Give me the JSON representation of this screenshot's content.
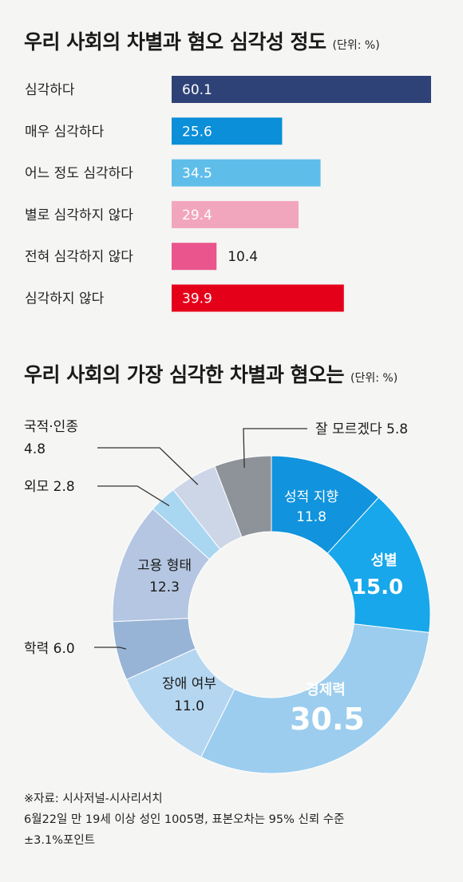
{
  "chart_data": [
    {
      "type": "bar",
      "title": "우리 사회의 차별과 혐오 심각성 정도",
      "unit": "(단위: %)",
      "categories": [
        "심각하다",
        "매우 심각하다",
        "어느 정도 심각하다",
        "별로 심각하지 않다",
        "전혀 심각하지 않다",
        "심각하지 않다"
      ],
      "values": [
        60.1,
        25.6,
        34.5,
        29.4,
        10.4,
        39.9
      ],
      "value_labels": [
        "60.1",
        "25.6",
        "34.5",
        "29.4",
        "10.4",
        "39.9"
      ],
      "colors": [
        "#2f4277",
        "#0b8fd8",
        "#5fbdea",
        "#f2a6bd",
        "#e9558c",
        "#e50019"
      ],
      "xlim": [
        0,
        60.1
      ]
    },
    {
      "type": "pie",
      "title": "우리 사회의 가장 심각한 차별과 혐오는",
      "unit": "(단위: %)",
      "slices": [
        {
          "label": "성적 지향",
          "value": 11.8,
          "value_label": "11.8",
          "color": "#1193dd"
        },
        {
          "label": "성별",
          "value": 15.0,
          "value_label": "15.0",
          "color": "#17a7ea"
        },
        {
          "label": "경제력",
          "value": 30.5,
          "value_label": "30.5",
          "color": "#9ccdee"
        },
        {
          "label": "장애 여부",
          "value": 11.0,
          "value_label": "11.0",
          "color": "#b5d6f0"
        },
        {
          "label": "학력",
          "value": 6.0,
          "value_label": "6.0",
          "color": "#97b4d6"
        },
        {
          "label": "고용 형태",
          "value": 12.3,
          "value_label": "12.3",
          "color": "#b4c6e1"
        },
        {
          "label": "외모",
          "value": 2.8,
          "value_label": "2.8",
          "color": "#a9d7f2"
        },
        {
          "label": "국적·인종",
          "value": 4.8,
          "value_label": "4.8",
          "color": "#cdd6e6"
        },
        {
          "label": "잘 모르겠다",
          "value": 5.8,
          "value_label": "5.8",
          "color": "#8d9398"
        }
      ]
    }
  ],
  "source": {
    "line1": "※자료: 시사저널-시사리서치",
    "line2": "6월22일 만 19세 이상 성인 1005명, 표본오차는 95% 신뢰 수준",
    "line3": "±3.1%포인트"
  }
}
